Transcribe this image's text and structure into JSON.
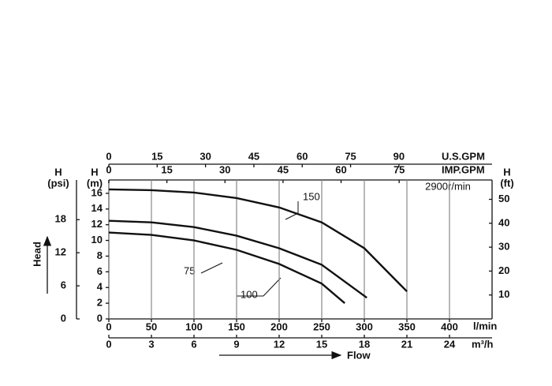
{
  "chart_data": {
    "type": "line",
    "speed_label": "2900r/min",
    "y_title_psi": [
      "H",
      "(psi)"
    ],
    "y_title_m": [
      "H",
      "(m)"
    ],
    "y_title_ft": [
      "H",
      "(ft)"
    ],
    "head_label": "Head",
    "flow_label": "Flow",
    "x_unit": "l/min",
    "x_m3h_unit": "m³/h",
    "x_usgpm_unit": "U.S.GPM",
    "x_impgpm_unit": "IMP.GPM",
    "xlim": [
      0,
      450
    ],
    "xticks": [
      0,
      50,
      100,
      150,
      200,
      250,
      300,
      350,
      400
    ],
    "x_m3h_lim": [
      0,
      27
    ],
    "x_m3h_ticks": [
      0,
      3,
      6,
      9,
      12,
      15,
      18,
      21,
      24
    ],
    "x_usgpm_lim": [
      0,
      118.9
    ],
    "x_usgpm_ticks": [
      0,
      15,
      30,
      45,
      60,
      75,
      90
    ],
    "x_impgpm_lim": [
      0,
      99
    ],
    "x_impgpm_ticks": [
      0,
      15,
      30,
      45,
      60,
      75
    ],
    "ylim": [
      0,
      17.7
    ],
    "yticks": [
      0,
      2,
      4,
      6,
      8,
      10,
      12,
      14,
      16
    ],
    "y_psi_lim": [
      0,
      25.2
    ],
    "y_psi_ticks": [
      0,
      6,
      12,
      18
    ],
    "y_ft_lim": [
      0,
      58.1
    ],
    "y_ft_ticks": [
      10,
      20,
      30,
      40,
      50
    ],
    "grid": "x",
    "series": [
      {
        "name": "150",
        "color": "#111111",
        "x": [
          0,
          50,
          100,
          150,
          200,
          250,
          300,
          350
        ],
        "values": [
          16.5,
          16.4,
          16.1,
          15.4,
          14.2,
          12.3,
          9.0,
          3.5
        ]
      },
      {
        "name": "75",
        "color": "#111111",
        "x": [
          0,
          50,
          100,
          150,
          200,
          250,
          303
        ],
        "values": [
          12.5,
          12.3,
          11.7,
          10.6,
          9.0,
          6.9,
          2.7
        ]
      },
      {
        "name": "100",
        "color": "#111111",
        "x": [
          0,
          50,
          100,
          150,
          200,
          250,
          277
        ],
        "values": [
          11.0,
          10.7,
          10.0,
          8.8,
          7.0,
          4.5,
          2.0
        ]
      }
    ]
  }
}
